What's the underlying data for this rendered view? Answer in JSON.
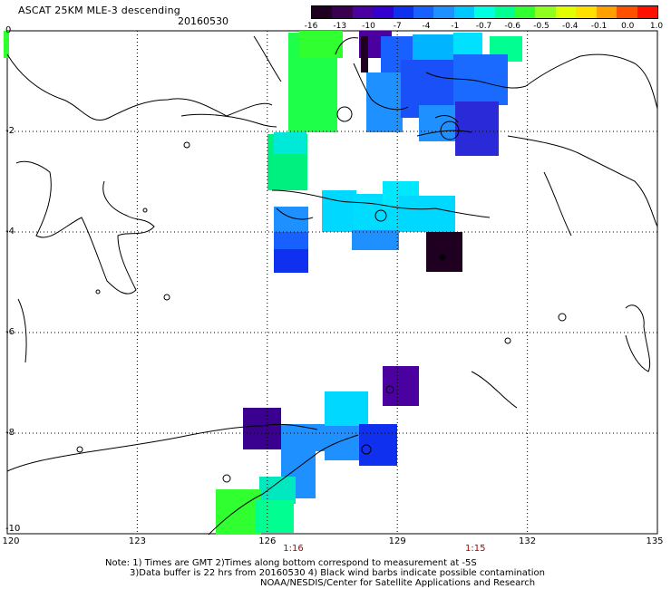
{
  "header": {
    "title": "ASCAT 25KM MLE-3 descending",
    "date": "20160530"
  },
  "colorbar": {
    "labels": [
      "-16",
      "-13",
      "-10",
      "-7",
      "-4",
      "-1",
      "-0.7",
      "-0.6",
      "-0.5",
      "-0.4",
      "-0.1",
      "0.0",
      "1.0"
    ],
    "colors": [
      "#200020",
      "#3a0050",
      "#4b00a0",
      "#3300d0",
      "#1030f0",
      "#1860ff",
      "#1e90ff",
      "#00c8ff",
      "#00ffe0",
      "#00ff90",
      "#30ff30",
      "#90ff20",
      "#e0ff00",
      "#ffe000",
      "#ffa000",
      "#ff5000",
      "#ff1000"
    ]
  },
  "axes": {
    "lon_ticks": [
      "120",
      "123",
      "126",
      "129",
      "132",
      "135"
    ],
    "lat_ticks": [
      "0",
      "-2",
      "-4",
      "-6",
      "-8",
      "-10"
    ],
    "lon_range": [
      120,
      135
    ],
    "lat_range": [
      -10,
      0
    ]
  },
  "time_markers": [
    {
      "label": "1:16",
      "lon": 126.6
    },
    {
      "label": "1:15",
      "lon": 130.8
    }
  ],
  "notes": {
    "line1": "Note: 1) Times are GMT 2)Times along bottom correspond to measurement at -5S",
    "line2": "3)Data buffer is 22 hrs from 20160530 4) Black wind barbs indicate possible contamination",
    "line3": "NOAA/NESDIS/Center for Satellite Applications and Research"
  }
}
